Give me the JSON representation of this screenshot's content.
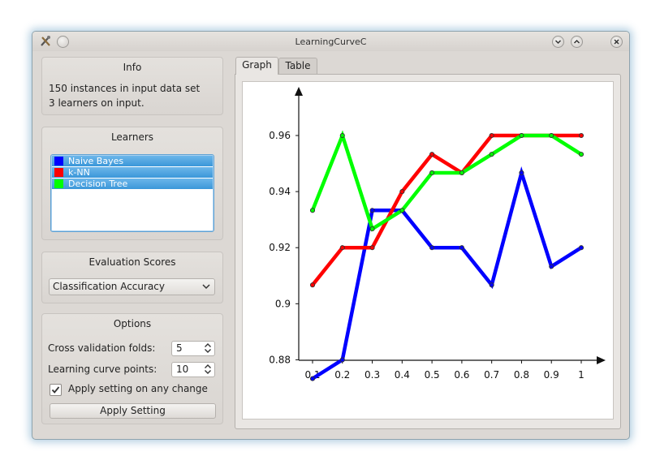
{
  "window": {
    "title": "LearningCurveC"
  },
  "info": {
    "title": "Info",
    "line1": "150 instances in input data set",
    "line2": "3 learners on input."
  },
  "learners": {
    "title": "Learners",
    "items": [
      {
        "label": "Naive Bayes",
        "color": "#0000ff"
      },
      {
        "label": "k-NN",
        "color": "#ff0000"
      },
      {
        "label": "Decision Tree",
        "color": "#00ff00"
      }
    ]
  },
  "evaluation": {
    "title": "Evaluation Scores",
    "selected": "Classification Accuracy"
  },
  "options": {
    "title": "Options",
    "folds_label": "Cross validation folds:",
    "folds_value": "5",
    "points_label": "Learning curve points:",
    "points_value": "10",
    "apply_change_label": "Apply setting on any change",
    "apply_change_checked": true,
    "apply_button": "Apply Setting"
  },
  "tabs": [
    {
      "label": "Graph",
      "active": true
    },
    {
      "label": "Table",
      "active": false
    }
  ],
  "chart_data": {
    "type": "line",
    "x": [
      0.1,
      0.2,
      0.3,
      0.4,
      0.5,
      0.6,
      0.7,
      0.8,
      0.9,
      1
    ],
    "x_tick_labels": [
      "0.1",
      "0.2",
      "0.3",
      "0.4",
      "0.5",
      "0.6",
      "0.7",
      "0.8",
      "0.9",
      "1"
    ],
    "y_ticks": [
      0.88,
      0.9,
      0.92,
      0.94,
      0.96
    ],
    "y_tick_labels": [
      "0.88",
      "0.9",
      "0.92",
      "0.94",
      "0.96"
    ],
    "ylim": [
      0.872,
      0.966
    ],
    "xlim": [
      0.1,
      1
    ],
    "grid": false,
    "title": "",
    "xlabel": "",
    "ylabel": "",
    "series": [
      {
        "name": "Naive Bayes",
        "color": "#0000ff",
        "values": [
          0.8733,
          0.88,
          0.9333,
          0.9333,
          0.92,
          0.92,
          0.9067,
          0.9467,
          0.9133,
          0.92
        ]
      },
      {
        "name": "k-NN",
        "color": "#ff0000",
        "values": [
          0.9067,
          0.92,
          0.92,
          0.94,
          0.9533,
          0.9467,
          0.96,
          0.96,
          0.96,
          0.96
        ]
      },
      {
        "name": "Decision Tree",
        "color": "#00ff00",
        "values": [
          0.9333,
          0.96,
          0.9267,
          0.9333,
          0.9467,
          0.9467,
          0.9533,
          0.96,
          0.96,
          0.9533
        ]
      }
    ]
  }
}
